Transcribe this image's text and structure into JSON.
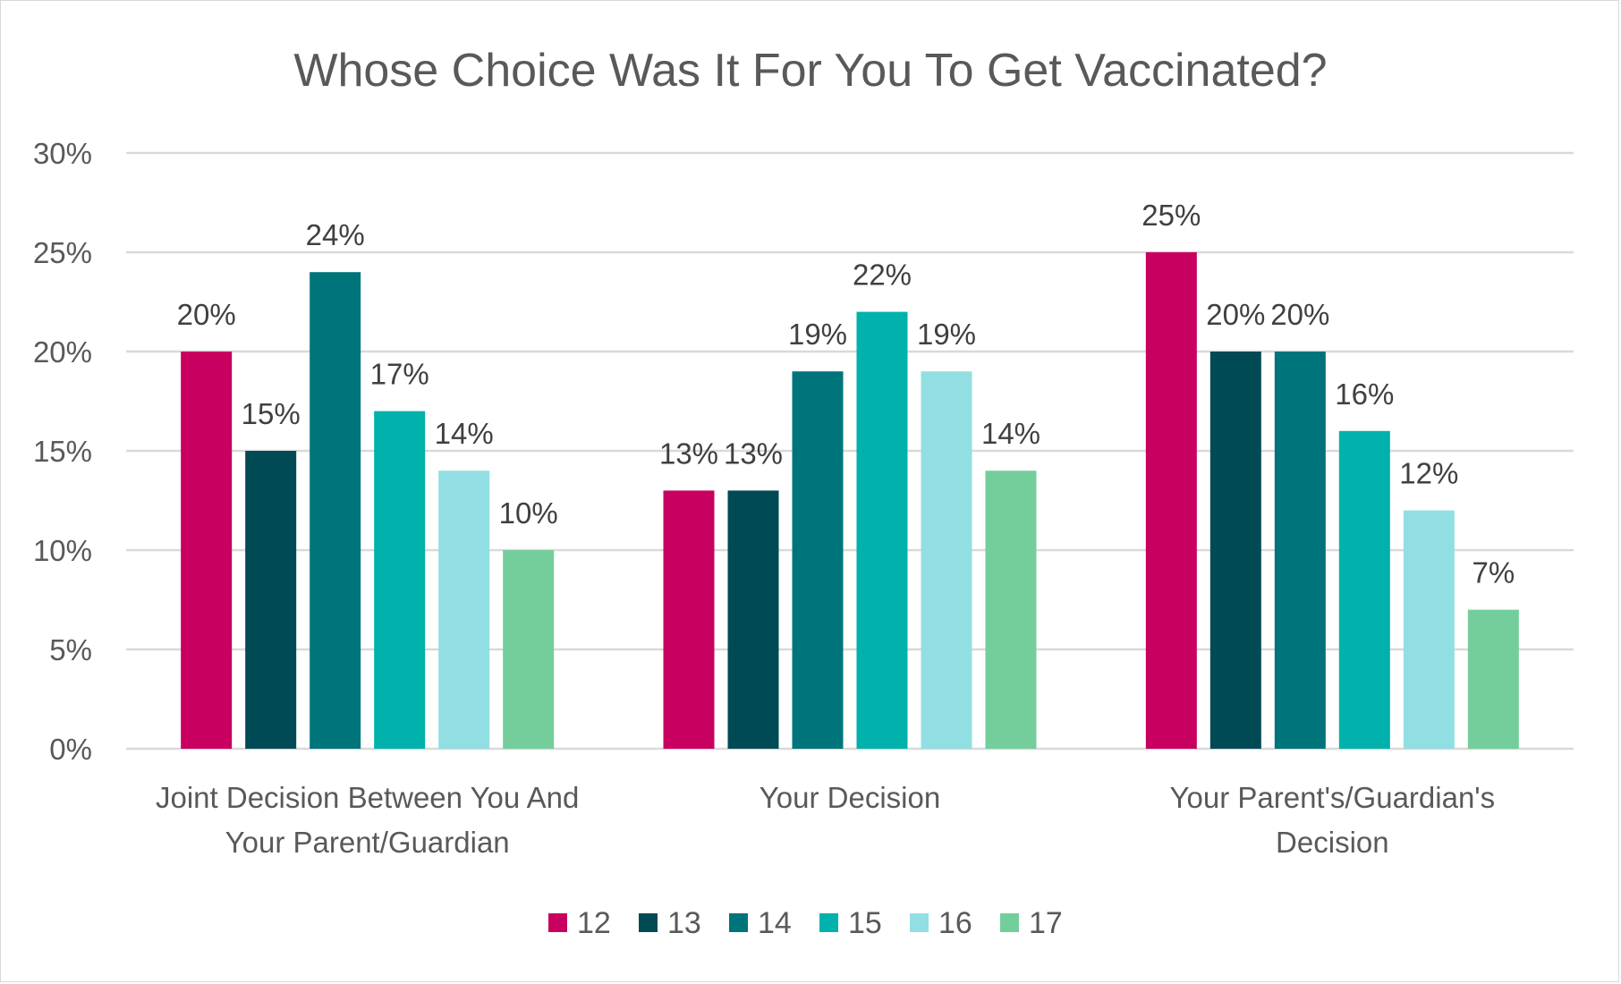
{
  "chart_data": {
    "type": "bar",
    "title": "Whose Choice Was It For You To Get Vaccinated?",
    "categories": [
      [
        "Joint Decision Between You And",
        "Your Parent/Guardian"
      ],
      [
        "Your Decision"
      ],
      [
        "Your Parent's/Guardian's",
        "Decision"
      ]
    ],
    "series": [
      {
        "name": "12",
        "color": "#c8005f",
        "values": [
          20,
          13,
          25
        ]
      },
      {
        "name": "13",
        "color": "#004a55",
        "values": [
          15,
          13,
          20
        ]
      },
      {
        "name": "14",
        "color": "#00747b",
        "values": [
          24,
          19,
          20
        ]
      },
      {
        "name": "15",
        "color": "#00b1ac",
        "values": [
          17,
          22,
          16
        ]
      },
      {
        "name": "16",
        "color": "#92dfe3",
        "values": [
          14,
          19,
          12
        ]
      },
      {
        "name": "17",
        "color": "#73ce9b",
        "values": [
          10,
          14,
          7
        ]
      }
    ],
    "ylim": [
      0,
      30
    ],
    "yticks": [
      0,
      5,
      10,
      15,
      20,
      25,
      30
    ],
    "value_format": "percent",
    "grid": true,
    "legend": "bottom",
    "gridline_color": "#d9d9d9"
  }
}
